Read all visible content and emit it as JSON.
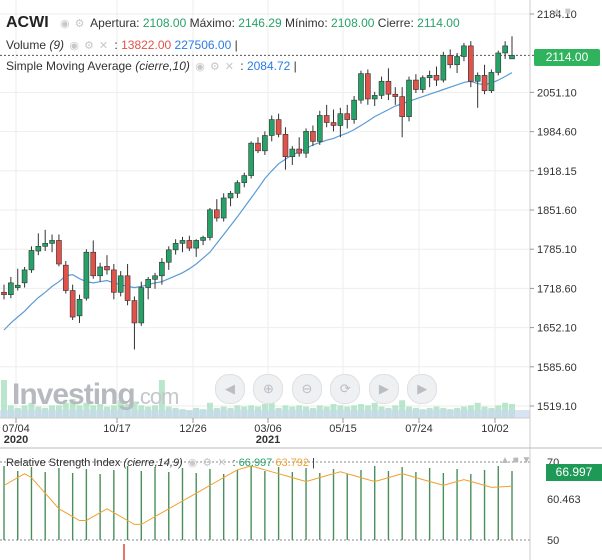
{
  "header": {
    "symbol": "ACWI",
    "open_label": "Apertura:",
    "open": "2108.00",
    "high_label": "Máximo:",
    "high": "2146.29",
    "low_label": "Mínimo:",
    "low": "2108.00",
    "close_label": "Cierre:",
    "close": "2114.00"
  },
  "volume_legend": {
    "label": "Volume",
    "param": "(9)",
    "value_red": "13822.00",
    "value_blue": "227506.00"
  },
  "sma_legend": {
    "label": "Simple Moving Average",
    "param": "(cierre,10)",
    "value": "2084.72"
  },
  "rsi_legend": {
    "label": "Relative Strength Index",
    "param": "(cierre,14,9)",
    "value_green": "66.997",
    "value_orange": "63.792"
  },
  "price_badge": "2114.00",
  "rsi_badge": "66.997",
  "logo": {
    "name": "Investing",
    "suffix": ".com"
  },
  "colors": {
    "up": "#26a269",
    "down": "#e0534a",
    "sma": "#5b9bd5",
    "rsi_signal": "#f0a030",
    "badge": "#2fb35c",
    "volume_bar": "#a8e0c0"
  },
  "icons": [
    "eye-icon",
    "settings-icon",
    "close-icon",
    "zoom-in-icon",
    "zoom-out-icon",
    "reset-icon",
    "scroll-left-icon",
    "scroll-right-icon",
    "triangle-icon"
  ],
  "chart_data": {
    "type": "candlestick",
    "y_axis_ticks": [
      "2184.10",
      "2051.10",
      "1984.60",
      "1918.15",
      "1851.60",
      "1785.10",
      "1718.60",
      "1652.10",
      "1585.60",
      "1519.10"
    ],
    "x_axis_ticks": [
      {
        "label": "07/04",
        "year": "2020"
      },
      {
        "label": "10/17",
        "year": ""
      },
      {
        "label": "12/26",
        "year": ""
      },
      {
        "label": "03/06",
        "year": "2021"
      },
      {
        "label": "05/15",
        "year": ""
      },
      {
        "label": "07/24",
        "year": ""
      },
      {
        "label": "10/02",
        "year": ""
      }
    ],
    "candles": [
      [
        1712,
        1725,
        1700,
        1708
      ],
      [
        1708,
        1738,
        1702,
        1728
      ],
      [
        1720,
        1752,
        1715,
        1724
      ],
      [
        1728,
        1755,
        1720,
        1750
      ],
      [
        1750,
        1790,
        1745,
        1783
      ],
      [
        1782,
        1812,
        1775,
        1790
      ],
      [
        1790,
        1818,
        1782,
        1795
      ],
      [
        1795,
        1810,
        1780,
        1800
      ],
      [
        1800,
        1810,
        1756,
        1760
      ],
      [
        1758,
        1765,
        1710,
        1715
      ],
      [
        1715,
        1725,
        1665,
        1670
      ],
      [
        1672,
        1708,
        1660,
        1700
      ],
      [
        1702,
        1785,
        1698,
        1780
      ],
      [
        1780,
        1800,
        1735,
        1740
      ],
      [
        1740,
        1762,
        1730,
        1755
      ],
      [
        1756,
        1775,
        1742,
        1750
      ],
      [
        1750,
        1760,
        1700,
        1712
      ],
      [
        1712,
        1748,
        1705,
        1740
      ],
      [
        1740,
        1760,
        1690,
        1698
      ],
      [
        1698,
        1705,
        1615,
        1660
      ],
      [
        1660,
        1730,
        1655,
        1720
      ],
      [
        1720,
        1738,
        1700,
        1734
      ],
      [
        1734,
        1745,
        1718,
        1740
      ],
      [
        1740,
        1770,
        1725,
        1763
      ],
      [
        1763,
        1790,
        1750,
        1784
      ],
      [
        1784,
        1802,
        1776,
        1795
      ],
      [
        1795,
        1806,
        1780,
        1800
      ],
      [
        1800,
        1808,
        1782,
        1787
      ],
      [
        1787,
        1802,
        1772,
        1800
      ],
      [
        1800,
        1808,
        1792,
        1805
      ],
      [
        1805,
        1855,
        1800,
        1852
      ],
      [
        1852,
        1870,
        1832,
        1838
      ],
      [
        1838,
        1880,
        1832,
        1872
      ],
      [
        1872,
        1884,
        1858,
        1880
      ],
      [
        1880,
        1902,
        1872,
        1898
      ],
      [
        1898,
        1915,
        1890,
        1910
      ],
      [
        1910,
        1968,
        1905,
        1965
      ],
      [
        1965,
        1975,
        1948,
        1952
      ],
      [
        1952,
        1985,
        1945,
        1978
      ],
      [
        1978,
        2012,
        1968,
        2005
      ],
      [
        2005,
        2015,
        1975,
        1980
      ],
      [
        1980,
        1992,
        1920,
        1942
      ],
      [
        1942,
        1960,
        1928,
        1955
      ],
      [
        1955,
        1975,
        1942,
        1948
      ],
      [
        1948,
        1990,
        1940,
        1985
      ],
      [
        1985,
        1995,
        1960,
        1968
      ],
      [
        1968,
        2020,
        1962,
        2012
      ],
      [
        2012,
        2030,
        1992,
        2000
      ],
      [
        2000,
        2022,
        1985,
        1995
      ],
      [
        1995,
        2025,
        1975,
        2015
      ],
      [
        2015,
        2030,
        1990,
        2005
      ],
      [
        2005,
        2045,
        1998,
        2038
      ],
      [
        2038,
        2088,
        2032,
        2083
      ],
      [
        2083,
        2090,
        2030,
        2040
      ],
      [
        2040,
        2052,
        2028,
        2046
      ],
      [
        2046,
        2078,
        2040,
        2070
      ],
      [
        2070,
        2092,
        2038,
        2048
      ],
      [
        2048,
        2060,
        2030,
        2044
      ],
      [
        2044,
        2060,
        1975,
        2010
      ],
      [
        2010,
        2078,
        2002,
        2072
      ],
      [
        2072,
        2082,
        2050,
        2056
      ],
      [
        2056,
        2080,
        2050,
        2076
      ],
      [
        2076,
        2088,
        2060,
        2080
      ],
      [
        2080,
        2095,
        2062,
        2072
      ],
      [
        2072,
        2120,
        2068,
        2114
      ],
      [
        2114,
        2124,
        2092,
        2098
      ],
      [
        2098,
        2118,
        2084,
        2112
      ],
      [
        2112,
        2135,
        2104,
        2130
      ],
      [
        2130,
        2138,
        2060,
        2070
      ],
      [
        2070,
        2085,
        2025,
        2080
      ],
      [
        2080,
        2098,
        2048,
        2054
      ],
      [
        2054,
        2090,
        2050,
        2085
      ],
      [
        2085,
        2122,
        2080,
        2118
      ],
      [
        2118,
        2138,
        2108,
        2130
      ],
      [
        2108,
        2146.29,
        2108,
        2114
      ]
    ],
    "sma": [
      1648,
      1660,
      1670,
      1680,
      1692,
      1703,
      1712,
      1722,
      1730,
      1740,
      1742,
      1735,
      1730,
      1728,
      1730,
      1732,
      1728,
      1725,
      1722,
      1720,
      1722,
      1725,
      1728,
      1730,
      1735,
      1740,
      1745,
      1752,
      1760,
      1770,
      1780,
      1795,
      1810,
      1825,
      1840,
      1856,
      1872,
      1888,
      1905,
      1918,
      1930,
      1938,
      1945,
      1950,
      1956,
      1962,
      1966,
      1970,
      1973,
      1978,
      1982,
      1988,
      1995,
      2002,
      2010,
      2016,
      2022,
      2028,
      2032,
      2036,
      2040,
      2044,
      2048,
      2052,
      2056,
      2060,
      2064,
      2068,
      2070,
      2066,
      2064,
      2067,
      2072,
      2078,
      2084.72
    ],
    "volume": [
      30,
      10,
      8,
      10,
      12,
      9,
      8,
      10,
      10,
      12,
      15,
      10,
      12,
      10,
      11,
      9,
      10,
      14,
      11,
      13,
      10,
      9,
      10,
      30,
      9,
      8,
      7,
      6,
      8,
      7,
      12,
      8,
      9,
      8,
      10,
      9,
      10,
      9,
      11,
      12,
      8,
      10,
      9,
      10,
      9,
      8,
      10,
      9,
      11,
      10,
      9,
      10,
      11,
      10,
      12,
      9,
      8,
      10,
      14,
      9,
      8,
      7,
      8,
      9,
      8,
      7,
      8,
      9,
      10,
      12,
      9,
      8,
      10,
      12,
      11
    ],
    "rsi": {
      "ylim": [
        50,
        70
      ],
      "y_ticks": [
        "70",
        "60.463",
        "50"
      ],
      "signal": [
        64,
        65,
        66,
        67,
        66,
        64,
        62,
        60,
        58,
        57,
        56,
        55,
        55,
        56,
        57,
        58,
        57,
        56,
        55,
        54,
        54,
        55,
        56,
        57,
        58,
        59,
        60,
        61,
        62,
        63,
        64,
        65,
        66,
        67,
        68,
        68.5,
        69,
        68.5,
        68,
        67.5,
        67,
        66.5,
        66,
        65.5,
        65,
        65.5,
        66,
        66.5,
        67,
        67.5,
        67,
        66.5,
        66,
        65.5,
        65,
        65.5,
        66,
        66.5,
        67,
        66.5,
        66,
        65.5,
        65,
        64.5,
        64,
        64.5,
        65,
        65.5,
        65,
        64.5,
        64,
        63.5,
        63.6,
        63.7,
        63.792
      ]
    }
  }
}
